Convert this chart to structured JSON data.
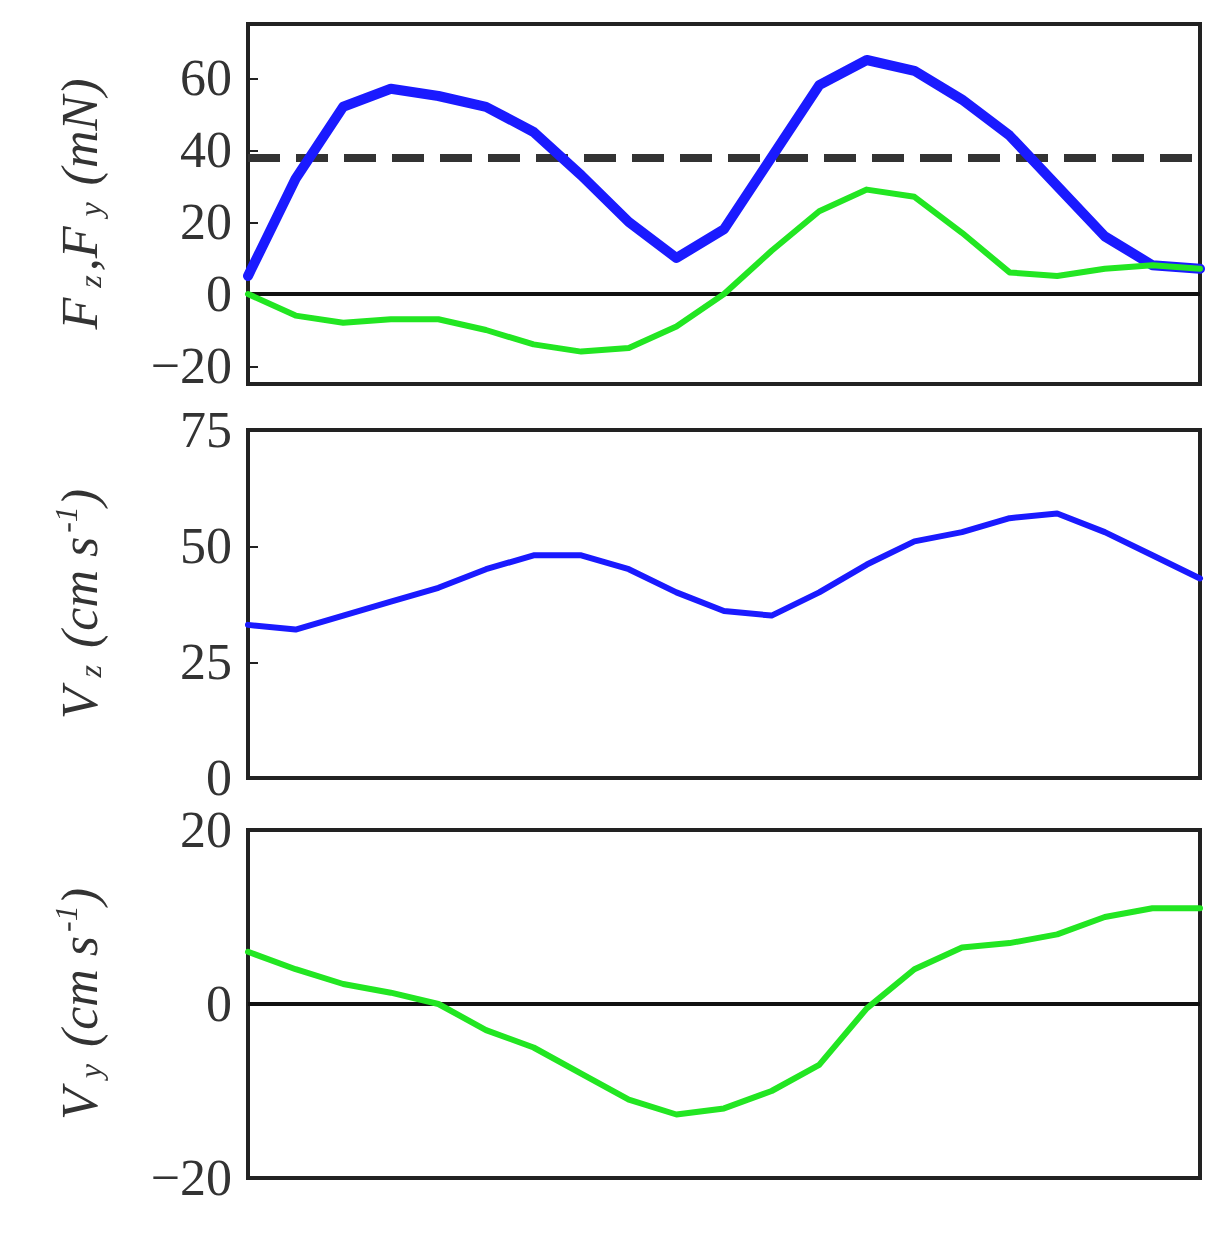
{
  "chart_data": [
    {
      "type": "line",
      "ylabel": "F$_{z}$,F$_{y}$ (mN)",
      "categories": [
        null,
        null,
        null,
        null,
        null,
        null,
        null,
        null,
        null,
        null,
        null,
        null,
        null,
        null,
        null,
        null,
        null,
        null,
        null,
        null,
        null
      ],
      "ylim": [
        -25,
        75
      ],
      "yticks": [
        -20,
        0,
        20,
        40,
        60
      ],
      "grid": false,
      "tick_labels": "y",
      "marker": "none",
      "line_style": "solid",
      "series": [
        {
          "color": "#1a1aff",
          "values": [
            5,
            32,
            52,
            57,
            55,
            52,
            45,
            33,
            20,
            10,
            18,
            38,
            58,
            65,
            62,
            54,
            44,
            30,
            16,
            8,
            7
          ]
        },
        {
          "color": "#22e622",
          "values": [
            0,
            -6,
            -8,
            -7,
            -7,
            -10,
            -14,
            -16,
            -15,
            -9,
            0,
            12,
            23,
            29,
            27,
            17,
            6,
            5,
            7,
            8,
            7
          ]
        }
      ],
      "ref_lines": [
        {
          "axis": "y",
          "value": 38,
          "color": "#333333",
          "line_style": "dashed"
        },
        {
          "axis": "y",
          "value": 0,
          "color": "#111111",
          "line_style": "solid"
        }
      ]
    },
    {
      "type": "line",
      "ylabel": "V$_{z}$ (cm s$^{-1}$)",
      "categories": [
        null,
        null,
        null,
        null,
        null,
        null,
        null,
        null,
        null,
        null,
        null,
        null,
        null,
        null,
        null,
        null,
        null,
        null,
        null,
        null,
        null
      ],
      "ylim": [
        0,
        75
      ],
      "yticks": [
        0,
        25,
        50,
        75
      ],
      "grid": false,
      "tick_labels": "y",
      "marker": "none",
      "line_style": "solid",
      "series": [
        {
          "color": "#1a1aff",
          "values": [
            33,
            32,
            35,
            38,
            41,
            45,
            48,
            48,
            45,
            40,
            36,
            35,
            40,
            46,
            51,
            53,
            56,
            57,
            53,
            48,
            43
          ]
        }
      ]
    },
    {
      "type": "line",
      "ylabel": "V$_{y}$ (cm s$^{-1}$)",
      "categories": [
        null,
        null,
        null,
        null,
        null,
        null,
        null,
        null,
        null,
        null,
        null,
        null,
        null,
        null,
        null,
        null,
        null,
        null,
        null,
        null,
        null
      ],
      "ylim": [
        -20,
        20
      ],
      "yticks": [
        -20,
        0,
        20
      ],
      "grid": false,
      "tick_labels": "y",
      "marker": "none",
      "line_style": "solid",
      "series": [
        {
          "color": "#22e622",
          "values": [
            6,
            4,
            2.3,
            1.3,
            0,
            -3,
            -5,
            -8,
            -11,
            -12.7,
            -12,
            -10,
            -7,
            -0.5,
            4,
            6.5,
            7,
            8,
            10,
            11,
            11
          ]
        }
      ],
      "ref_lines": [
        {
          "axis": "y",
          "value": 0,
          "color": "#111111",
          "line_style": "solid"
        }
      ]
    }
  ]
}
